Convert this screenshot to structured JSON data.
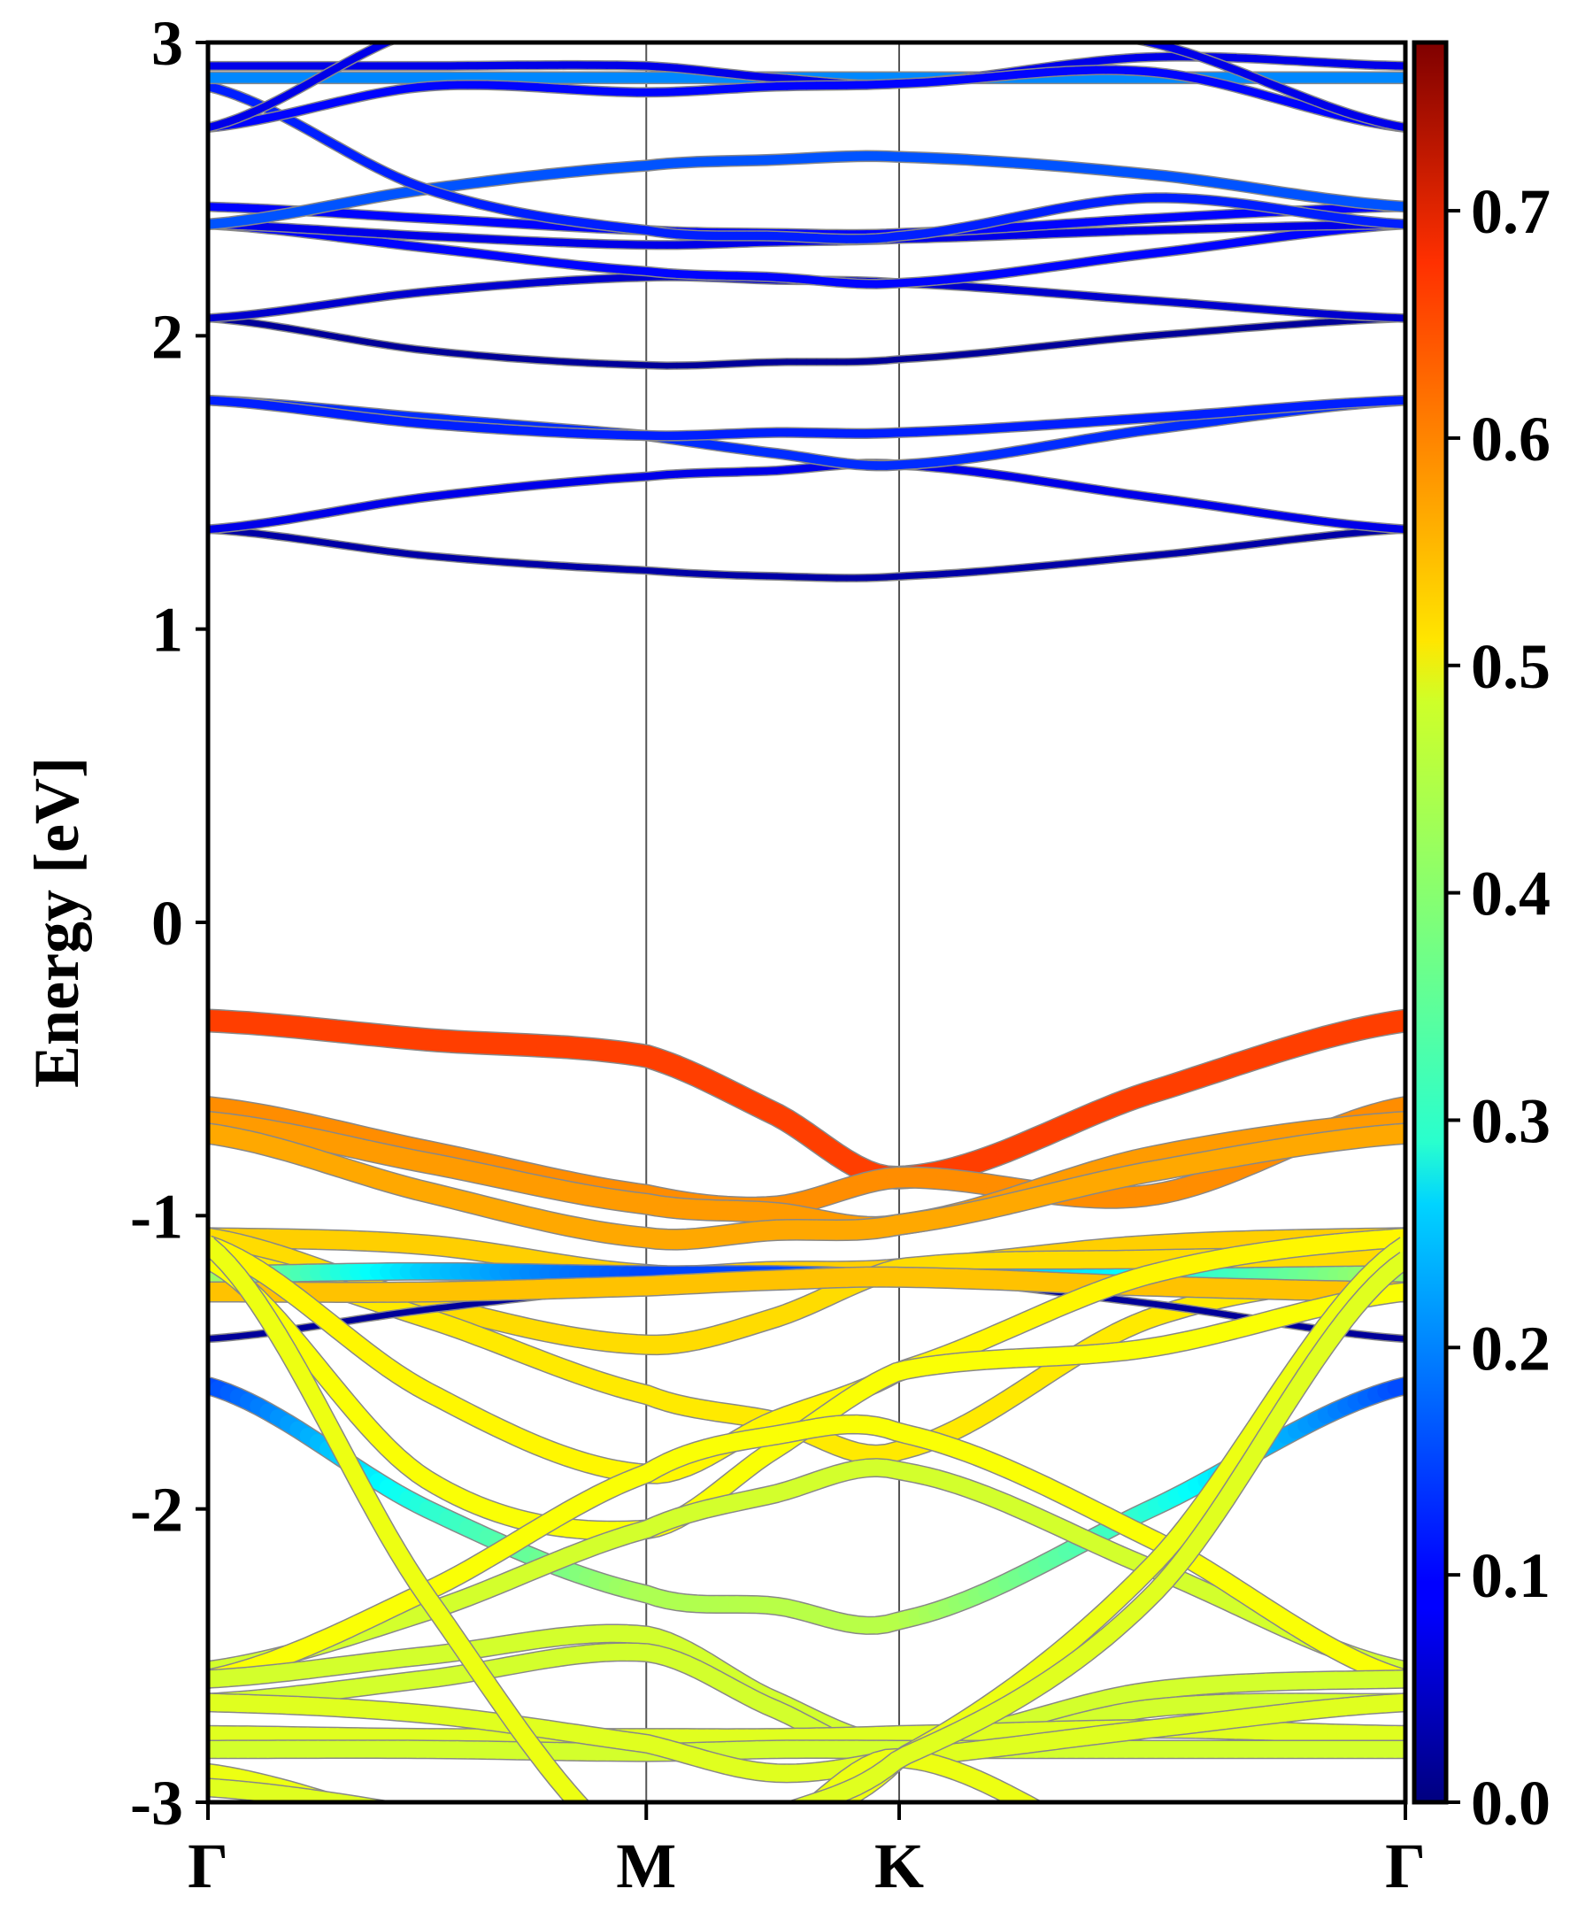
{
  "chart_data": {
    "type": "line",
    "title": "",
    "xlabel": "",
    "ylabel": "Energy [eV]",
    "ylim": [
      -3,
      3
    ],
    "yticks": [
      3,
      2,
      1,
      0,
      -1,
      -2,
      -3
    ],
    "ytick_labels": [
      "3",
      "2",
      "1",
      "0",
      "-1",
      "-2",
      "-3"
    ],
    "kpath": [
      {
        "label": "Γ",
        "k": 0
      },
      {
        "label": "M",
        "k": 1.0
      },
      {
        "label": "K",
        "k": 1.577
      },
      {
        "label": "Γ",
        "k": 2.732
      }
    ],
    "k_nodes": [
      0,
      0.5,
      1.0,
      1.29,
      1.577,
      2.15,
      2.732
    ],
    "colorbar": {
      "colormap": "jet",
      "range": [
        0,
        0.774
      ],
      "ticks": [
        0.0,
        0.1,
        0.2,
        0.3,
        0.4,
        0.5,
        0.6,
        0.7
      ],
      "tick_labels": [
        "0.0",
        "0.1",
        "0.2",
        "0.3",
        "0.4",
        "0.5",
        "0.6",
        "0.7"
      ]
    },
    "grid": false,
    "bands": [
      {
        "E": [
          1.34,
          1.25,
          1.2,
          1.18,
          1.18,
          1.25,
          1.34
        ],
        "w": [
          0.03
        ]
      },
      {
        "E": [
          1.34,
          1.45,
          1.52,
          1.54,
          1.56,
          1.45,
          1.34
        ],
        "w": [
          0.08
        ]
      },
      {
        "E": [
          1.78,
          1.72,
          1.66,
          1.6,
          1.56,
          1.68,
          1.78
        ],
        "w": [
          0.13
        ]
      },
      {
        "E": [
          1.78,
          1.7,
          1.66,
          1.67,
          1.67,
          1.72,
          1.78
        ],
        "w": [
          0.12
        ]
      },
      {
        "E": [
          2.06,
          1.95,
          1.9,
          1.91,
          1.92,
          2.0,
          2.06
        ],
        "w": [
          0.02
        ]
      },
      {
        "E": [
          2.06,
          2.15,
          2.2,
          2.19,
          2.18,
          2.12,
          2.06
        ],
        "w": [
          0.06
        ]
      },
      {
        "E": [
          2.38,
          2.3,
          2.22,
          2.2,
          2.18,
          2.28,
          2.38
        ],
        "w": [
          0.1
        ]
      },
      {
        "E": [
          2.38,
          2.34,
          2.31,
          2.32,
          2.33,
          2.36,
          2.38
        ],
        "w": [
          0.08
        ]
      },
      {
        "E": [
          2.44,
          2.4,
          2.36,
          2.35,
          2.35,
          2.4,
          2.44
        ],
        "w": [
          0.1
        ]
      },
      {
        "E": [
          2.38,
          2.5,
          2.58,
          2.6,
          2.61,
          2.55,
          2.44
        ],
        "w": [
          0.16
        ]
      },
      {
        "E": [
          2.85,
          2.5,
          2.36,
          2.34,
          2.34,
          2.47,
          2.38
        ],
        "w": [
          0.12
        ]
      },
      {
        "E": [
          2.88,
          2.88,
          2.88,
          2.88,
          2.88,
          2.88,
          2.88
        ],
        "w": [
          0.2
        ]
      },
      {
        "E": [
          2.92,
          2.92,
          2.92,
          2.88,
          2.86,
          2.95,
          2.92
        ],
        "w": [
          0.08
        ]
      },
      {
        "E": [
          2.71,
          2.85,
          2.83,
          2.85,
          2.86,
          2.9,
          2.71
        ],
        "w": [
          0.1
        ]
      },
      {
        "E": [
          2.71,
          3.05,
          3.1,
          3.1,
          3.1,
          3.0,
          2.71
        ],
        "w": [
          0.08
        ]
      },
      {
        "E": [
          -0.335,
          -0.4,
          -0.456,
          -0.65,
          -0.87,
          -0.58,
          -0.335
        ],
        "w": [
          0.63
        ]
      },
      {
        "E": [
          -0.63,
          -0.78,
          -0.93,
          -0.97,
          -0.87,
          -0.93,
          -0.63
        ],
        "w": [
          0.57
        ]
      },
      {
        "E": [
          -0.68,
          -0.82,
          -0.96,
          -0.99,
          -1.03,
          -0.8,
          -0.68
        ],
        "w": [
          0.56
        ]
      },
      {
        "E": [
          -0.72,
          -0.92,
          -1.075,
          -1.05,
          -1.03,
          -0.85,
          -0.72
        ],
        "w": [
          0.55
        ]
      },
      {
        "E": [
          -1.075,
          -1.1,
          -1.2,
          -1.19,
          -1.18,
          -1.1,
          -1.075
        ],
        "w": [
          0.52
        ]
      },
      {
        "E": [
          -1.075,
          -1.3,
          -1.44,
          -1.35,
          -1.18,
          -1.15,
          -1.14
        ],
        "w": [
          0.51
        ]
      },
      {
        "E": [
          -1.14,
          -1.35,
          -1.61,
          -1.7,
          -1.8,
          -1.35,
          -1.2
        ],
        "w": [
          0.5
        ]
      },
      {
        "E": [
          -1.2,
          -1.19,
          -1.2,
          -1.2,
          -1.21,
          -1.21,
          -1.2
        ],
        "w": [
          0.42,
          0.25,
          0.15,
          0.15,
          0.2,
          0.3,
          0.42
        ]
      },
      {
        "E": [
          -1.42,
          -1.32,
          -1.24,
          -1.22,
          -1.21,
          -1.3,
          -1.42
        ],
        "w": [
          0.02
        ]
      },
      {
        "E": [
          -1.26,
          -1.26,
          -1.24,
          -1.22,
          -1.21,
          -1.24,
          -1.26
        ],
        "w": [
          0.53
        ]
      },
      {
        "E": [
          -1.1,
          -1.6,
          -1.88,
          -1.7,
          -1.53,
          -1.2,
          -1.075
        ],
        "w": [
          0.49
        ]
      },
      {
        "E": [
          -1.15,
          -1.9,
          -2.07,
          -1.8,
          -1.53,
          -1.45,
          -1.26
        ],
        "w": [
          0.48
        ]
      },
      {
        "E": [
          -1.58,
          -2.0,
          -2.29,
          -2.33,
          -2.38,
          -2.0,
          -1.58
        ],
        "w": [
          0.15,
          0.32,
          0.42,
          0.43,
          0.43,
          0.32,
          0.15
        ]
      },
      {
        "E": [
          -2.55,
          -2.35,
          -2.07,
          -1.95,
          -1.87,
          -2.2,
          -2.55
        ],
        "w": [
          0.45
        ]
      },
      {
        "E": [
          -2.58,
          -2.28,
          -1.88,
          -1.75,
          -1.74,
          -2.1,
          -2.58
        ],
        "w": [
          0.48
        ]
      },
      {
        "E": [
          -2.58,
          -2.5,
          -2.43,
          -2.65,
          -2.8,
          -2.62,
          -2.58
        ],
        "w": [
          0.45
        ]
      },
      {
        "E": [
          -2.66,
          -2.58,
          -2.49,
          -2.68,
          -2.85,
          -2.68,
          -2.66
        ],
        "w": [
          0.45
        ]
      },
      {
        "E": [
          -2.77,
          -2.78,
          -2.78,
          -2.78,
          -2.77,
          -2.75,
          -2.77
        ],
        "w": [
          0.46
        ]
      },
      {
        "E": [
          -2.82,
          -2.82,
          -2.83,
          -2.82,
          -2.82,
          -2.82,
          -2.82
        ],
        "w": [
          0.45
        ]
      },
      {
        "E": [
          -2.66,
          -2.7,
          -2.8,
          -2.9,
          -2.85,
          -2.75,
          -2.66
        ],
        "w": [
          0.46
        ]
      },
      {
        "E": [
          -2.9,
          -3.1,
          -3.3,
          -3.1,
          -2.85,
          -2.2,
          -1.1
        ],
        "w": [
          0.47
        ]
      },
      {
        "E": [
          -1.1,
          -2.3,
          -3.2,
          -3.1,
          -2.85,
          -3.2,
          -3.3
        ],
        "w": [
          0.47
        ]
      },
      {
        "E": [
          -2.95,
          -3.05,
          -3.2,
          -3.05,
          -2.85,
          -2.3,
          -1.15
        ],
        "w": [
          0.46
        ]
      }
    ]
  }
}
